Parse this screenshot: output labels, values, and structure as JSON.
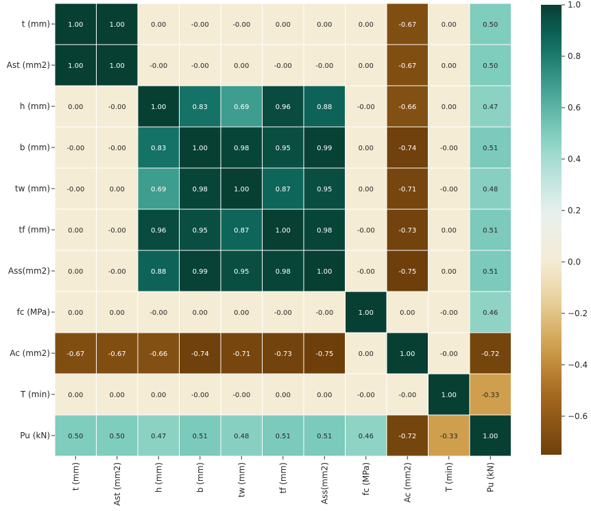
{
  "chart_data": {
    "type": "heatmap",
    "title": "",
    "rows": [
      "t (mm)",
      "Ast (mm2)",
      "h (mm)",
      "b (mm)",
      "tw (mm)",
      "tf (mm)",
      "Ass(mm2)",
      "fc (MPa)",
      "Ac (mm2)",
      "T (min)",
      "Pu (kN)"
    ],
    "cols": [
      "t (mm)",
      "Ast (mm2)",
      "h (mm)",
      "b (mm)",
      "tw (mm)",
      "tf (mm)",
      "Ass(mm2)",
      "fc (MPa)",
      "Ac (mm2)",
      "T (min)",
      "Pu (kN)"
    ],
    "values": [
      [
        "1.00",
        "1.00",
        "0.00",
        "-0.00",
        "-0.00",
        "0.00",
        "0.00",
        "0.00",
        "-0.67",
        "0.00",
        "0.50"
      ],
      [
        "1.00",
        "1.00",
        "-0.00",
        "-0.00",
        "0.00",
        "-0.00",
        "-0.00",
        "0.00",
        "-0.67",
        "0.00",
        "0.50"
      ],
      [
        "0.00",
        "-0.00",
        "1.00",
        "0.83",
        "0.69",
        "0.96",
        "0.88",
        "-0.00",
        "-0.66",
        "0.00",
        "0.47"
      ],
      [
        "-0.00",
        "-0.00",
        "0.83",
        "1.00",
        "0.98",
        "0.95",
        "0.99",
        "0.00",
        "-0.74",
        "-0.00",
        "0.51"
      ],
      [
        "-0.00",
        "0.00",
        "0.69",
        "0.98",
        "1.00",
        "0.87",
        "0.95",
        "0.00",
        "-0.71",
        "-0.00",
        "0.48"
      ],
      [
        "0.00",
        "-0.00",
        "0.96",
        "0.95",
        "0.87",
        "1.00",
        "0.98",
        "-0.00",
        "-0.73",
        "0.00",
        "0.51"
      ],
      [
        "0.00",
        "-0.00",
        "0.88",
        "0.99",
        "0.95",
        "0.98",
        "1.00",
        "-0.00",
        "-0.75",
        "0.00",
        "0.51"
      ],
      [
        "0.00",
        "0.00",
        "-0.00",
        "0.00",
        "0.00",
        "-0.00",
        "-0.00",
        "1.00",
        "0.00",
        "-0.00",
        "0.46"
      ],
      [
        "-0.67",
        "-0.67",
        "-0.66",
        "-0.74",
        "-0.71",
        "-0.73",
        "-0.75",
        "0.00",
        "1.00",
        "-0.00",
        "-0.72"
      ],
      [
        "0.00",
        "0.00",
        "0.00",
        "-0.00",
        "-0.00",
        "0.00",
        "0.00",
        "-0.00",
        "-0.00",
        "1.00",
        "-0.33"
      ],
      [
        "0.50",
        "0.50",
        "0.47",
        "0.51",
        "0.48",
        "0.51",
        "0.51",
        "0.46",
        "-0.72",
        "-0.33",
        "1.00"
      ]
    ],
    "colorbar": {
      "range": [
        -0.75,
        1.0
      ],
      "ticks": [
        "1.0",
        "0.8",
        "0.6",
        "0.4",
        "0.2",
        "0.0",
        "−0.2",
        "−0.4",
        "−0.6"
      ],
      "tick_values": [
        1.0,
        0.8,
        0.6,
        0.4,
        0.2,
        0.0,
        -0.2,
        -0.4,
        -0.6
      ]
    },
    "colormap": "BrBG",
    "colors": {
      "-1.0": "#543005",
      "-0.75": "#6e3f0b",
      "-0.5": "#a96d22",
      "-0.33": "#cf9f4d",
      "-0.15": "#e8d09c",
      "0.0": "#f5ecd5",
      "0.2": "#e6f0ee",
      "0.4": "#a6dcd2",
      "0.5": "#7fcdbd",
      "0.7": "#3a9a8c",
      "0.85": "#0f6c60",
      "1.0": "#073f33"
    },
    "grid": false,
    "legend": "colorbar-right"
  }
}
